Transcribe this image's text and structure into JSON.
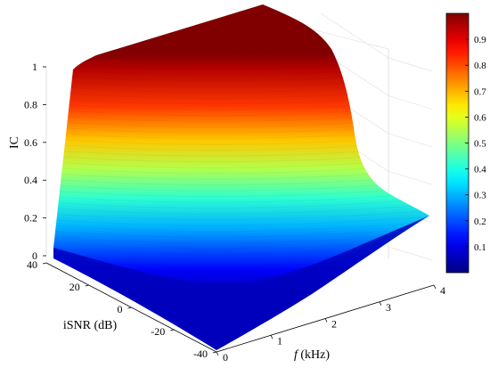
{
  "chart_data": {
    "type": "surface",
    "title": "",
    "zlabel": "IC",
    "xlabel_italic": "f",
    "xlabel_rest": " (kHz)",
    "ylabel": "iSNR (dB)",
    "x_axis": {
      "name": "f",
      "unit": "kHz",
      "range": [
        0,
        4
      ],
      "ticks": [
        "0",
        "1",
        "2",
        "3",
        "4"
      ]
    },
    "y_axis": {
      "name": "iSNR",
      "unit": "dB",
      "range": [
        -40,
        40
      ],
      "ticks": [
        "-40",
        "-20",
        "0",
        "20",
        "40"
      ]
    },
    "z_axis": {
      "name": "IC",
      "range": [
        0,
        1
      ],
      "ticks": [
        "0",
        "0.2",
        "0.4",
        "0.6",
        "0.8",
        "1"
      ]
    },
    "colorbar": {
      "colormap": "jet",
      "range": [
        0,
        1
      ],
      "ticks": [
        {
          "value": 0.1,
          "label": "0.1"
        },
        {
          "value": 0.2,
          "label": "0.2"
        },
        {
          "value": 0.3,
          "label": "0.3"
        },
        {
          "value": 0.4,
          "label": "0.4"
        },
        {
          "value": 0.5,
          "label": "0.5"
        },
        {
          "value": 0.6,
          "label": "0.6"
        },
        {
          "value": 0.7,
          "label": "0.7"
        },
        {
          "value": 0.8,
          "label": "0.8"
        },
        {
          "value": 0.9,
          "label": "0.9"
        }
      ]
    },
    "surface_profile": {
      "f_kHz": [
        0,
        0.25,
        0.5,
        1,
        1.5,
        2,
        2.2,
        2.4,
        2.6,
        2.8,
        3,
        3.5,
        4
      ],
      "iSNR_dB": [
        -40,
        -30,
        -20,
        -10,
        0,
        10,
        20,
        30,
        40
      ],
      "ic_at_iSNR_40_by_f": [
        0.98,
        0.98,
        0.98,
        0.98,
        0.98,
        0.96,
        0.92,
        0.7,
        0.45,
        0.3,
        0.25,
        0.22,
        0.2
      ],
      "ic_at_iSNR_-40_by_f": [
        0.02,
        0.02,
        0.02,
        0.02,
        0.02,
        0.02,
        0.02,
        0.02,
        0.02,
        0.02,
        0.02,
        0.02,
        0.02
      ],
      "ic_by_iSNR_shape": [
        0.0,
        0.01,
        0.03,
        0.1,
        0.5,
        0.9,
        0.97,
        0.99,
        1.0
      ]
    },
    "grid": true,
    "view": "3d-perspective"
  }
}
